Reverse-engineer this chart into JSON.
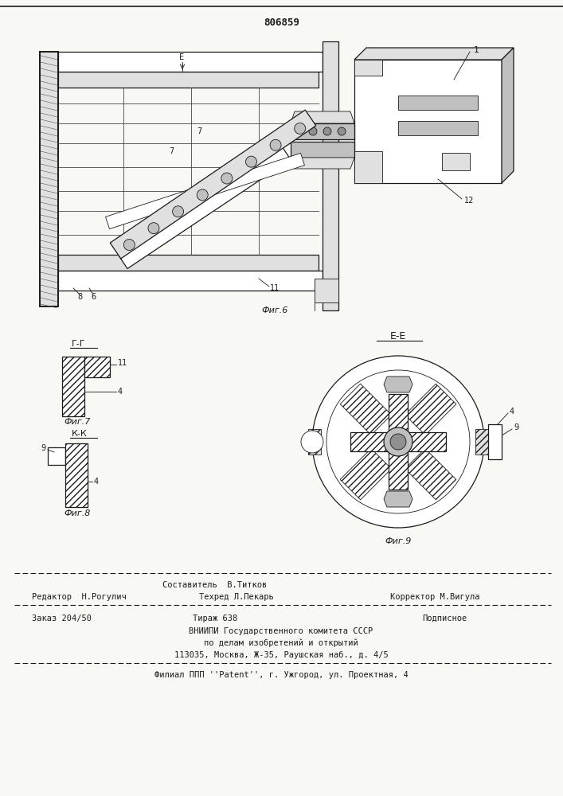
{
  "patent_number": "806859",
  "background_color": "#f8f8f5",
  "line_color": "#1a1a1a",
  "fig6_label": "Фиг.6",
  "fig7_label": "Фиг.7",
  "fig8_label": "Фиг.8",
  "fig9_label": "Фиг.9",
  "section_gg": "Г-Г",
  "section_kk": "К-К",
  "section_ee": "E-E",
  "editor_line": "Редактор  Н.Рогулич",
  "composer_line": "Составитель  В.Титков",
  "techred_line": "Техред Л.Пекарь",
  "corrector_line": "Корректор М.Вигула",
  "order_line": "Заказ 204/50",
  "tirazh_line": "Тираж 638",
  "podpisnoe_line": "Подписное",
  "vniip_line": "ВНИИПИ Государственного комитета СССР",
  "podel_line": "по делам изобретений и открытий",
  "addr_line": "113035, Москва, Ж-35, Раушская наб., д. 4/5",
  "filial_line": "Филиал ППП ''Patent'', г. Ужгород, ул. Проектная, 4"
}
